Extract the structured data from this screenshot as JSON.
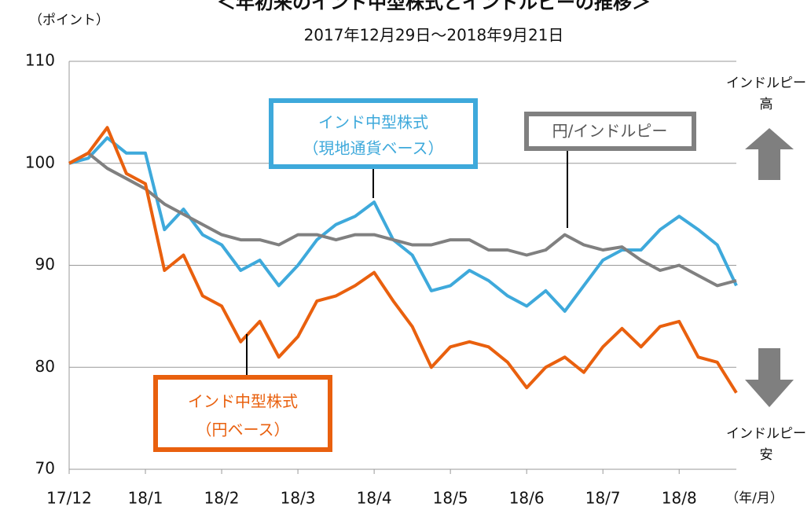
{
  "chart_data": {
    "type": "line",
    "title": "＜年初来のインド中型株式とインドルピーの推移＞",
    "subtitle": "2017年12月29日～2018年9月21日",
    "y_label": "（ポイント）",
    "x_label": "（年/月）",
    "xlim": [
      0,
      8.75
    ],
    "xticks": [
      {
        "value": 0,
        "label": "17/12"
      },
      {
        "value": 1,
        "label": "18/1"
      },
      {
        "value": 2,
        "label": "18/2"
      },
      {
        "value": 3,
        "label": "18/3"
      },
      {
        "value": 4,
        "label": "18/4"
      },
      {
        "value": 5,
        "label": "18/5"
      },
      {
        "value": 6,
        "label": "18/6"
      },
      {
        "value": 7,
        "label": "18/7"
      },
      {
        "value": 8,
        "label": "18/8"
      }
    ],
    "ylim": [
      70,
      110
    ],
    "yticks": [
      70,
      80,
      90,
      100,
      110
    ],
    "grid": true,
    "x": [
      0,
      0.25,
      0.5,
      0.75,
      1,
      1.25,
      1.5,
      1.75,
      2,
      2.25,
      2.5,
      2.75,
      3,
      3.25,
      3.5,
      3.75,
      4,
      4.25,
      4.5,
      4.75,
      5,
      5.25,
      5.5,
      5.75,
      6,
      6.25,
      6.5,
      6.75,
      7,
      7.25,
      7.5,
      7.75,
      8,
      8.25,
      8.5,
      8.75
    ],
    "series": [
      {
        "name": "インド中型株式（現地通貨ベース）",
        "color": "#3ea9db",
        "values": [
          100,
          100.5,
          102.5,
          101,
          101,
          93.5,
          95.5,
          93,
          92,
          89.5,
          90.5,
          88,
          90,
          92.5,
          94,
          94.8,
          96.2,
          92.5,
          91,
          87.5,
          88,
          89.5,
          88.5,
          87,
          86,
          87.5,
          85.5,
          88,
          90.5,
          91.5,
          91.5,
          93.5,
          94.8,
          93.5,
          92,
          88
        ]
      },
      {
        "name": "円/インドルピー",
        "color": "#808080",
        "values": [
          100,
          101,
          99.5,
          98.5,
          97.5,
          96,
          95,
          94,
          93,
          92.5,
          92.5,
          92,
          93,
          93,
          92.5,
          93,
          93,
          92.5,
          92,
          92,
          92.5,
          92.5,
          91.5,
          91.5,
          91,
          91.5,
          93,
          92,
          91.5,
          91.8,
          90.5,
          89.5,
          90,
          89,
          88,
          88.5
        ]
      },
      {
        "name": "インド中型株式（円ベース）",
        "color": "#e9600e",
        "values": [
          100,
          101,
          103.5,
          99,
          98,
          89.5,
          91,
          87,
          86,
          82.5,
          84.5,
          81,
          83,
          86.5,
          87,
          88,
          89.3,
          86.5,
          84,
          80,
          82,
          82.5,
          82,
          80.5,
          78,
          80,
          81,
          79.5,
          82,
          83.8,
          82,
          84,
          84.5,
          81,
          80.5,
          77.5
        ]
      }
    ],
    "annotations": [
      {
        "lines": [
          "インド中型株式",
          "（現地通貨ベース）"
        ]
      },
      {
        "lines": [
          "円/インドルピー"
        ]
      },
      {
        "lines": [
          "インド中型株式",
          "（円ベース）"
        ]
      },
      {
        "lines": [
          "インドルピー",
          "高"
        ]
      },
      {
        "lines": [
          "インドルピー",
          "安"
        ]
      }
    ]
  }
}
